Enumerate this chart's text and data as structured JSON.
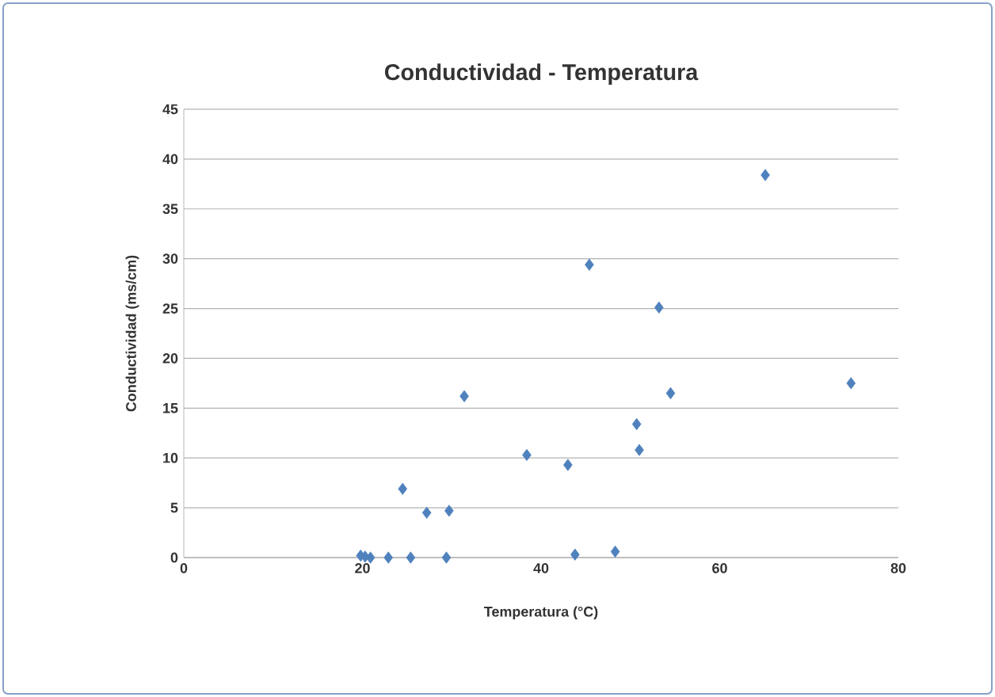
{
  "chart_data": {
    "type": "scatter",
    "title": "Conductividad - Temperatura",
    "xlabel": "Temperatura (°C)",
    "ylabel": "Conductividad (ms/cm)",
    "series": [
      {
        "color": "#4f81bd",
        "x": [
          65.1,
          45.4,
          53.2,
          74.7,
          54.5,
          31.4,
          50.7,
          51.0,
          38.4,
          43.0,
          24.5,
          27.2,
          29.7,
          19.8,
          20.3,
          20.9,
          22.9,
          25.4,
          29.4,
          43.8,
          48.3
        ],
        "values": [
          38.4,
          29.4,
          25.1,
          17.5,
          16.5,
          16.2,
          13.4,
          10.8,
          10.3,
          9.3,
          6.9,
          4.5,
          4.7,
          0.2,
          0.1,
          0,
          0,
          0,
          0,
          0.3,
          0.6
        ]
      }
    ],
    "xlim": [
      0,
      80
    ],
    "xticks": [
      0,
      20,
      40,
      60,
      80
    ],
    "ylim": [
      0,
      45
    ],
    "yticks": [
      0,
      5,
      10,
      15,
      20,
      25,
      30,
      35,
      40,
      45
    ],
    "grid": "y",
    "marker": "diamond"
  }
}
